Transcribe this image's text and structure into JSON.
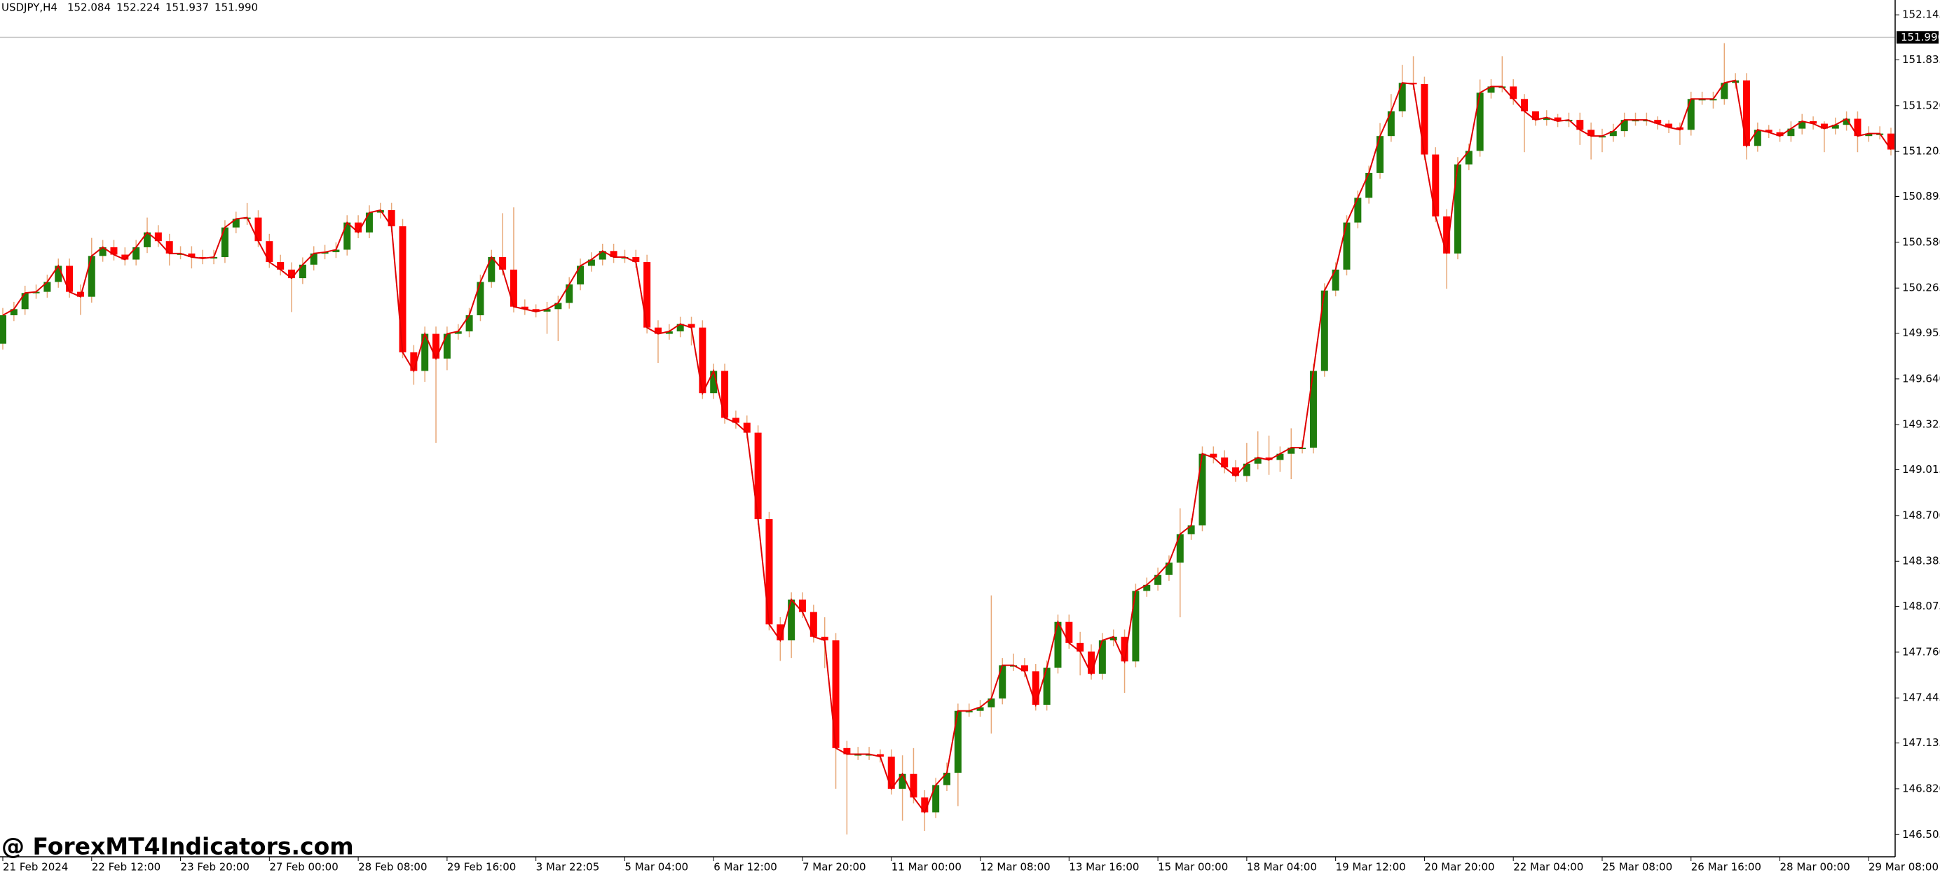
{
  "chart_data": {
    "type": "candlestick",
    "title": "USDJPY,H4",
    "header_prices": [
      152.084,
      152.224,
      151.937,
      {
        "value": 151.99,
        "label": "151.990"
      }
    ],
    "watermark": "@ ForexMT4Indicators.com",
    "categories": [
      "21 Feb 2024",
      null,
      null,
      null,
      null,
      null,
      null,
      null,
      "22 Feb 12:00",
      null,
      null,
      null,
      null,
      null,
      null,
      null,
      "23 Feb 20:00",
      null,
      null,
      null,
      null,
      null,
      null,
      null,
      "27 Feb 00:00",
      null,
      null,
      null,
      null,
      null,
      null,
      null,
      "28 Feb 08:00",
      null,
      null,
      null,
      null,
      null,
      null,
      null,
      "29 Feb 16:00",
      null,
      null,
      null,
      null,
      null,
      null,
      null,
      "3 Mar 22:05",
      null,
      null,
      null,
      null,
      null,
      null,
      null,
      "5 Mar 04:00",
      null,
      null,
      null,
      null,
      null,
      null,
      null,
      "6 Mar 12:00",
      null,
      null,
      null,
      null,
      null,
      null,
      null,
      "7 Mar 20:00",
      null,
      null,
      null,
      null,
      null,
      null,
      null,
      "11 Mar 00:00",
      null,
      null,
      null,
      null,
      null,
      null,
      null,
      "12 Mar 08:00",
      null,
      null,
      null,
      null,
      null,
      null,
      null,
      "13 Mar 16:00",
      null,
      null,
      null,
      null,
      null,
      null,
      null,
      "15 Mar 00:00",
      null,
      null,
      null,
      null,
      null,
      null,
      null,
      "18 Mar 04:00",
      null,
      null,
      null,
      null,
      null,
      null,
      null,
      "19 Mar 12:00",
      null,
      null,
      null,
      null,
      null,
      null,
      null,
      "20 Mar 20:00",
      null,
      null,
      null,
      null,
      null,
      null,
      null,
      "22 Mar 04:00",
      null,
      null,
      null,
      null,
      null,
      null,
      null,
      "25 Mar 08:00",
      null,
      null,
      null,
      null,
      null,
      null,
      null,
      "26 Mar 16:00",
      null,
      null,
      null,
      null,
      null,
      null,
      null,
      "28 Mar 00:00",
      null,
      null,
      null,
      null,
      null,
      null,
      null,
      "29 Mar 08:00",
      null,
      null
    ],
    "open": [
      149.882,
      150.078,
      150.12,
      150.231,
      150.239,
      150.307,
      150.418,
      150.239,
      150.205,
      150.486,
      150.546,
      150.495,
      150.461,
      150.546,
      150.648,
      150.588,
      150.503,
      150.503,
      150.478,
      150.469,
      150.478,
      150.682,
      150.741,
      150.75,
      150.588,
      150.444,
      150.392,
      150.333,
      150.426,
      150.503,
      150.512,
      150.529,
      150.716,
      150.648,
      150.784,
      150.801,
      150.69,
      149.823,
      149.695,
      149.95,
      149.78,
      149.95,
      149.967,
      150.078,
      150.307,
      150.478,
      150.392,
      150.137,
      150.12,
      150.103,
      150.12,
      150.163,
      150.29,
      150.418,
      150.461,
      150.52,
      150.478,
      150.478,
      150.444,
      149.993,
      149.95,
      149.967,
      150.018,
      149.993,
      149.542,
      149.695,
      149.372,
      149.338,
      149.27,
      148.675,
      147.951,
      147.841,
      148.122,
      148.036,
      147.866,
      147.841,
      147.1,
      147.058,
      147.058,
      147.058,
      147.041,
      146.82,
      146.922,
      146.76,
      146.658,
      146.845,
      146.93,
      147.356,
      147.356,
      147.381,
      147.441,
      147.67,
      147.67,
      147.628,
      147.398,
      147.653,
      147.968,
      147.823,
      147.764,
      147.611,
      147.841,
      147.866,
      147.696,
      148.181,
      148.223,
      148.291,
      148.376,
      148.572,
      148.632,
      149.125,
      149.099,
      149.031,
      148.972,
      149.057,
      149.099,
      149.082,
      149.125,
      149.167,
      149.167,
      149.695,
      150.248,
      150.392,
      150.716,
      150.886,
      151.057,
      151.311,
      151.481,
      151.677,
      151.669,
      151.184,
      150.758,
      150.503,
      151.116,
      151.209,
      151.609,
      151.652,
      151.652,
      151.566,
      151.481,
      151.422,
      151.439,
      151.413,
      151.422,
      151.354,
      151.311,
      151.311,
      151.345,
      151.422,
      151.422,
      151.422,
      151.396,
      151.371,
      151.354,
      151.566,
      151.566,
      151.566,
      151.677,
      151.694,
      151.243,
      151.354,
      151.337,
      151.311,
      151.362,
      151.413,
      151.396,
      151.362,
      151.388,
      151.43,
      151.311,
      151.328,
      151.328
    ],
    "high": [
      150.128,
      150.17,
      150.281,
      150.289,
      150.357,
      150.468,
      150.468,
      150.289,
      150.61,
      150.596,
      150.596,
      150.545,
      150.596,
      150.75,
      150.698,
      150.638,
      150.553,
      150.553,
      150.528,
      150.528,
      150.732,
      150.791,
      150.85,
      150.8,
      150.638,
      150.494,
      150.442,
      150.476,
      150.553,
      150.562,
      150.579,
      150.766,
      150.766,
      150.834,
      150.851,
      150.851,
      150.74,
      149.873,
      150.0,
      150.0,
      150.0,
      150.017,
      150.128,
      150.357,
      150.528,
      150.78,
      150.82,
      150.187,
      150.153,
      150.17,
      150.213,
      150.34,
      150.468,
      150.511,
      150.57,
      150.57,
      150.528,
      150.528,
      150.494,
      150.043,
      150.017,
      150.068,
      150.068,
      150.043,
      149.745,
      149.745,
      149.422,
      149.388,
      149.32,
      148.725,
      148.001,
      148.172,
      148.172,
      148.086,
      148.0,
      147.891,
      147.15,
      147.108,
      147.108,
      147.091,
      147.091,
      147.05,
      147.1,
      146.81,
      146.895,
      147.0,
      147.406,
      147.406,
      147.431,
      148.15,
      147.72,
      147.75,
      147.72,
      147.678,
      147.703,
      148.018,
      148.018,
      147.9,
      147.814,
      147.891,
      147.916,
      147.916,
      148.231,
      148.273,
      148.341,
      148.426,
      148.75,
      148.682,
      149.175,
      149.175,
      149.149,
      149.081,
      149.2,
      149.28,
      149.25,
      149.175,
      149.3,
      149.217,
      149.745,
      150.298,
      150.442,
      150.766,
      150.936,
      151.107,
      151.4,
      151.6,
      151.8,
      151.86,
      151.719,
      151.234,
      150.808,
      151.166,
      151.259,
      151.7,
      151.702,
      151.86,
      151.702,
      151.6,
      151.472,
      151.489,
      151.463,
      151.472,
      151.472,
      151.404,
      151.361,
      151.395,
      151.472,
      151.472,
      151.472,
      151.446,
      151.421,
      151.404,
      151.616,
      151.616,
      151.616,
      151.95,
      151.744,
      151.744,
      151.404,
      151.387,
      151.361,
      151.412,
      151.463,
      151.446,
      151.412,
      151.438,
      151.48,
      151.48,
      151.378,
      151.378,
      151.368
    ],
    "low": [
      149.842,
      150.038,
      150.08,
      150.191,
      150.199,
      150.267,
      150.199,
      150.08,
      150.165,
      150.446,
      150.455,
      150.421,
      150.421,
      150.506,
      150.548,
      150.42,
      150.463,
      150.4,
      150.429,
      150.429,
      150.438,
      150.642,
      150.7,
      150.548,
      150.404,
      150.352,
      150.1,
      150.293,
      150.386,
      150.463,
      150.472,
      150.489,
      150.608,
      150.608,
      150.744,
      150.65,
      149.783,
      149.6,
      149.62,
      149.2,
      149.7,
      149.91,
      149.927,
      150.038,
      150.267,
      150.352,
      150.097,
      150.08,
      150.063,
      149.95,
      149.9,
      150.123,
      150.25,
      150.378,
      150.421,
      150.438,
      150.438,
      150.404,
      149.953,
      149.75,
      149.91,
      149.927,
      149.87,
      149.502,
      149.502,
      149.332,
      149.298,
      149.23,
      148.635,
      147.911,
      147.7,
      147.72,
      147.996,
      147.826,
      147.65,
      146.82,
      146.505,
      147.018,
      147.018,
      147.001,
      146.78,
      146.6,
      146.72,
      146.53,
      146.618,
      146.805,
      146.7,
      147.316,
      147.316,
      147.2,
      147.401,
      147.63,
      147.588,
      147.358,
      147.358,
      147.613,
      147.783,
      147.6,
      147.571,
      147.571,
      147.801,
      147.48,
      147.656,
      148.141,
      148.183,
      148.251,
      148.0,
      148.532,
      148.592,
      149.059,
      148.991,
      148.932,
      148.932,
      149.017,
      148.98,
      149.0,
      148.95,
      149.127,
      149.127,
      149.655,
      150.208,
      150.352,
      150.676,
      150.846,
      151.017,
      151.271,
      151.441,
      151.629,
      151.144,
      150.718,
      150.26,
      150.463,
      151.076,
      151.169,
      151.569,
      151.612,
      151.526,
      151.2,
      151.382,
      151.382,
      151.373,
      151.373,
      151.25,
      151.15,
      151.2,
      151.271,
      151.305,
      151.382,
      151.382,
      151.356,
      151.331,
      151.25,
      151.314,
      151.526,
      151.5,
      151.526,
      151.637,
      151.15,
      151.203,
      151.297,
      151.271,
      151.271,
      151.322,
      151.356,
      151.2,
      151.322,
      151.348,
      151.2,
      151.271,
      151.288,
      151.178
    ],
    "close": [
      150.078,
      150.12,
      150.231,
      150.239,
      150.307,
      150.418,
      150.239,
      150.205,
      150.486,
      150.546,
      150.495,
      150.461,
      150.546,
      150.648,
      150.588,
      150.503,
      150.503,
      150.478,
      150.469,
      150.478,
      150.682,
      150.741,
      150.75,
      150.588,
      150.444,
      150.392,
      150.333,
      150.426,
      150.503,
      150.512,
      150.529,
      150.716,
      150.648,
      150.784,
      150.801,
      150.69,
      149.823,
      149.695,
      149.95,
      149.78,
      149.95,
      149.967,
      150.078,
      150.307,
      150.478,
      150.392,
      150.137,
      150.12,
      150.103,
      150.12,
      150.163,
      150.29,
      150.418,
      150.461,
      150.52,
      150.478,
      150.478,
      150.444,
      149.993,
      149.95,
      149.967,
      150.018,
      149.993,
      149.542,
      149.695,
      149.372,
      149.338,
      149.27,
      148.675,
      147.951,
      147.841,
      148.122,
      148.036,
      147.866,
      147.841,
      147.1,
      147.058,
      147.058,
      147.058,
      147.041,
      146.82,
      146.922,
      146.76,
      146.658,
      146.845,
      146.93,
      147.356,
      147.356,
      147.381,
      147.441,
      147.67,
      147.67,
      147.628,
      147.398,
      147.653,
      147.968,
      147.823,
      147.764,
      147.611,
      147.841,
      147.866,
      147.696,
      148.181,
      148.223,
      148.291,
      148.376,
      148.572,
      148.632,
      149.125,
      149.099,
      149.031,
      148.972,
      149.057,
      149.099,
      149.082,
      149.125,
      149.167,
      149.167,
      149.695,
      150.248,
      150.392,
      150.716,
      150.886,
      151.057,
      151.311,
      151.481,
      151.677,
      151.669,
      151.184,
      150.758,
      150.503,
      151.116,
      151.209,
      151.609,
      151.652,
      151.652,
      151.566,
      151.481,
      151.422,
      151.439,
      151.413,
      151.422,
      151.354,
      151.311,
      151.311,
      151.345,
      151.422,
      151.422,
      151.422,
      151.396,
      151.371,
      151.354,
      151.566,
      151.566,
      151.566,
      151.677,
      151.694,
      151.243,
      151.354,
      151.337,
      151.311,
      151.362,
      151.413,
      151.396,
      151.362,
      151.388,
      151.43,
      151.311,
      151.328,
      151.328,
      151.218
    ],
    "up_color": "#1f7d0c",
    "down_color": "#ff0000",
    "wick_color": "#e8a878",
    "close_line": true,
    "line_color": "#e00000",
    "ylim": [
      146.352,
      152.247
    ],
    "yticks": [
      152.145,
      151.835,
      {
        "value": 151.52,
        "label": "151.520"
      },
      151.205,
      150.895,
      {
        "value": 150.58,
        "label": "150.580"
      },
      150.265,
      149.955,
      {
        "value": 149.64,
        "label": "149.640"
      },
      149.325,
      149.015,
      {
        "value": 148.7,
        "label": "148.700"
      },
      148.385,
      148.075,
      {
        "value": 147.76,
        "label": "147.760"
      },
      147.445,
      147.135,
      {
        "value": 146.82,
        "label": "146.820"
      },
      146.505
    ],
    "current_price": {
      "value": 151.99,
      "label": "151.990"
    },
    "grid": false
  }
}
